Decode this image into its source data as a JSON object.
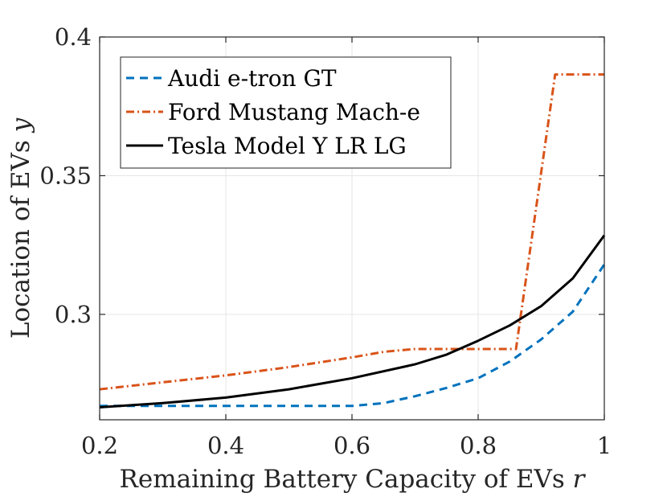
{
  "chart_data": {
    "type": "line",
    "xlabel": "Remaining Battery Capacity of EVs ",
    "xlabel_var": "r",
    "ylabel": "Location of EVs ",
    "ylabel_var": "y",
    "xlim": [
      0.2,
      1.0
    ],
    "ylim": [
      0.262,
      0.4
    ],
    "x_ticks": [
      0.2,
      0.4,
      0.6,
      0.8,
      1.0
    ],
    "x_tick_labels": [
      "0.2",
      "0.4",
      "0.6",
      "0.8",
      "1"
    ],
    "y_ticks": [
      0.3,
      0.35,
      0.4
    ],
    "y_tick_labels": [
      "0.3",
      "0.35",
      "0.4"
    ],
    "grid": true,
    "legend_position": "top-left",
    "series": [
      {
        "name": "Audi e-tron GT",
        "color": "#0072BD",
        "style": "dashed",
        "x": [
          0.2,
          0.3,
          0.4,
          0.5,
          0.6,
          0.65,
          0.7,
          0.75,
          0.8,
          0.85,
          0.9,
          0.95,
          1.0
        ],
        "y": [
          0.267,
          0.267,
          0.267,
          0.267,
          0.267,
          0.268,
          0.2705,
          0.2735,
          0.277,
          0.283,
          0.291,
          0.301,
          0.318
        ]
      },
      {
        "name": "Ford Mustang Mach-e",
        "color": "#D95319",
        "style": "dashdot",
        "x": [
          0.2,
          0.3,
          0.4,
          0.5,
          0.6,
          0.65,
          0.7,
          0.75,
          0.8,
          0.86,
          0.922,
          1.0
        ],
        "y": [
          0.273,
          0.2755,
          0.278,
          0.281,
          0.2845,
          0.2865,
          0.2875,
          0.2875,
          0.2875,
          0.2875,
          0.3865,
          0.3865
        ]
      },
      {
        "name": "Tesla Model Y LR LG",
        "color": "#000000",
        "style": "solid",
        "x": [
          0.2,
          0.3,
          0.4,
          0.5,
          0.6,
          0.7,
          0.75,
          0.8,
          0.85,
          0.9,
          0.95,
          1.0
        ],
        "y": [
          0.2665,
          0.268,
          0.27,
          0.273,
          0.277,
          0.282,
          0.2855,
          0.2905,
          0.296,
          0.303,
          0.313,
          0.3285
        ]
      }
    ]
  }
}
